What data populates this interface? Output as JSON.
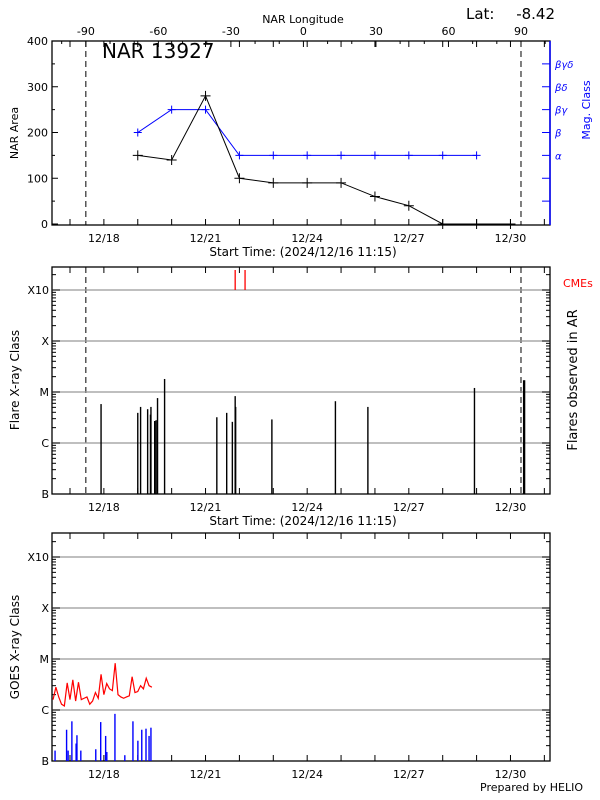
{
  "header": {
    "lat_label": "Lat:",
    "lat_value": "-8.42",
    "lon_axis_label": "NAR Longitude",
    "region_title": "NAR 13927"
  },
  "footer": {
    "prepared_by": "Prepared by HELIO"
  },
  "colors": {
    "area": "#000000",
    "mag": "#0000ff",
    "cme": "#ff0000",
    "goes_long": "#ff0000",
    "goes_short": "#0000ff",
    "grid": "#999999"
  },
  "chart_data": [
    {
      "type": "line",
      "panel": "nar",
      "xlabel": "Start Time: (2024/12/16 11:15)",
      "ylabel": "NAR Area",
      "y2label": "Mag. Class",
      "xlim": [
        "2024-12-16T11:15",
        "2024-12-31T04:00"
      ],
      "ylim": [
        0,
        400
      ],
      "yticks": [
        0,
        100,
        200,
        300,
        400
      ],
      "xticks": [
        "12/18",
        "12/21",
        "12/24",
        "12/27",
        "12/30"
      ],
      "top_axis": {
        "label": "NAR Longitude",
        "range": [
          -104,
          102
        ],
        "ticks": [
          -90,
          -60,
          -30,
          0,
          30,
          60,
          90
        ]
      },
      "limb_markers_longitude": [
        -90,
        90
      ],
      "mag_class_ticks": [
        {
          "area": 50,
          "label": ""
        },
        {
          "area": 100,
          "label": ""
        },
        {
          "area": 150,
          "label": "α"
        },
        {
          "area": 200,
          "label": "β"
        },
        {
          "area": 250,
          "label": "βγ"
        },
        {
          "area": 300,
          "label": "βδ"
        },
        {
          "area": 350,
          "label": "βγδ"
        }
      ],
      "area_series": {
        "x": [
          "2024-12-19T00:00",
          "2024-12-20T00:00",
          "2024-12-21T00:00",
          "2024-12-22T00:00",
          "2024-12-23T00:00",
          "2024-12-24T00:00",
          "2024-12-25T00:00",
          "2024-12-26T00:00",
          "2024-12-27T00:00",
          "2024-12-28T00:00",
          "2024-12-29T00:00",
          "2024-12-30T00:00"
        ],
        "values": [
          150,
          140,
          280,
          100,
          90,
          90,
          90,
          60,
          40,
          0,
          0,
          0
        ]
      },
      "mag_series": {
        "x": [
          "2024-12-19T00:00",
          "2024-12-20T00:00",
          "2024-12-21T00:00",
          "2024-12-22T00:00",
          "2024-12-23T00:00",
          "2024-12-24T00:00",
          "2024-12-25T00:00",
          "2024-12-26T00:00",
          "2024-12-27T00:00",
          "2024-12-28T00:00",
          "2024-12-29T00:00"
        ],
        "classes": [
          "β",
          "βγ",
          "βγ",
          "α",
          "α",
          "α",
          "α",
          "α",
          "α",
          "α",
          "α"
        ]
      }
    },
    {
      "type": "bar",
      "panel": "flares",
      "xlabel": "Start Time: (2024/12/16 11:15)",
      "ylabel": "Flare X-ray Class",
      "y2label": "Flares observed in AR",
      "xlim": [
        "2024-12-16T11:15",
        "2024-12-31T04:00"
      ],
      "yscale": "log",
      "yticks": [
        "B",
        "C",
        "M",
        "X",
        "X10"
      ],
      "xticks": [
        "12/18",
        "12/21",
        "12/24",
        "12/27",
        "12/30"
      ],
      "grid": true,
      "flares": [
        {
          "t": "2024-12-17T22:00",
          "class": "C5.8"
        },
        {
          "t": "2024-12-19T00:00",
          "class": "C3.9"
        },
        {
          "t": "2024-12-19T02:00",
          "class": "C5.1"
        },
        {
          "t": "2024-12-19T07:00",
          "class": "C4.6"
        },
        {
          "t": "2024-12-19T09:00",
          "class": "C3.6"
        },
        {
          "t": "2024-12-19T09:20",
          "class": "C5.1"
        },
        {
          "t": "2024-12-19T12:00",
          "class": "C2.7"
        },
        {
          "t": "2024-12-19T13:00",
          "class": "C2.8"
        },
        {
          "t": "2024-12-19T14:00",
          "class": "C7.6"
        },
        {
          "t": "2024-12-19T19:00",
          "class": "M1.8"
        },
        {
          "t": "2024-12-21T08:00",
          "class": "C3.2"
        },
        {
          "t": "2024-12-21T15:00",
          "class": "C3.9"
        },
        {
          "t": "2024-12-21T19:00",
          "class": "C2.6"
        },
        {
          "t": "2024-12-21T21:00",
          "class": "C8.3"
        },
        {
          "t": "2024-12-21T21:20",
          "class": "C5.1"
        },
        {
          "t": "2024-12-22T23:00",
          "class": "C2.9"
        },
        {
          "t": "2024-12-24T20:00",
          "class": "C6.6"
        },
        {
          "t": "2024-12-25T19:00",
          "class": "C5.1"
        },
        {
          "t": "2024-12-28T22:30",
          "class": "M1.2"
        },
        {
          "t": "2024-12-30T09:20",
          "class": "M1.7"
        },
        {
          "t": "2024-12-30T10:00",
          "class": "M1.7"
        }
      ],
      "cme_label": "CMEs",
      "cmes": [
        "2024-12-21T21:00",
        "2024-12-22T04:00"
      ]
    },
    {
      "type": "line",
      "panel": "goes",
      "ylabel": "GOES X-ray Class",
      "xlim": [
        "2024-12-16T11:15",
        "2024-12-31T04:00"
      ],
      "yscale": "log",
      "yticks": [
        "B",
        "C",
        "M",
        "X",
        "X10"
      ],
      "xticks": [
        "12/18",
        "12/21",
        "12/24",
        "12/27",
        "12/30"
      ],
      "grid": true,
      "long_channel": {
        "start": "2024-12-16T12:00",
        "step_hours": 2,
        "classes": [
          "C1.6",
          "C2.8",
          "C1.8",
          "C1.3",
          "C1.2",
          "C3.4",
          "C1.6",
          "C3.9",
          "C1.5",
          "C3.5",
          "C1.6",
          "C1.7",
          "C1.8",
          "C1.3",
          "C1.5",
          "C2.2",
          "C1.7",
          "C5.0",
          "C2.0",
          "C3.3",
          "C2.6",
          "C2.4",
          "C8.3",
          "C2.0",
          "C1.8",
          "C1.7",
          "C1.8",
          "C1.9",
          "C4.5",
          "C2.2",
          "C2.3",
          "C3.0",
          "C2.6",
          "C4.2",
          "C3.0",
          "C2.8"
        ]
      },
      "short_channel": [
        {
          "t": "2024-12-16T13:25",
          "class": "B1.6"
        },
        {
          "t": "2024-12-16T21:35",
          "class": "B4.1"
        },
        {
          "t": "2024-12-16T22:40",
          "class": "B1.6"
        },
        {
          "t": "2024-12-17T01:20",
          "class": "B6.0"
        },
        {
          "t": "2024-12-17T04:20",
          "class": "B2.2"
        },
        {
          "t": "2024-12-17T04:55",
          "class": "B3.2"
        },
        {
          "t": "2024-12-17T07:40",
          "class": "B1.6"
        },
        {
          "t": "2024-12-17T18:15",
          "class": "B1.7"
        },
        {
          "t": "2024-12-17T21:45",
          "class": "B5.8"
        },
        {
          "t": "2024-12-18T01:15",
          "class": "B3.1"
        },
        {
          "t": "2024-12-18T02:05",
          "class": "B1.5"
        },
        {
          "t": "2024-12-18T07:50",
          "class": "B8.4"
        },
        {
          "t": "2024-12-18T14:50",
          "class": "B1.3"
        },
        {
          "t": "2024-12-18T20:35",
          "class": "B6.0"
        },
        {
          "t": "2024-12-19T00:05",
          "class": "B2.5"
        },
        {
          "t": "2024-12-19T02:50",
          "class": "B4.1"
        },
        {
          "t": "2024-12-19T05:50",
          "class": "B4.3"
        },
        {
          "t": "2024-12-19T08:00",
          "class": "B3.1"
        },
        {
          "t": "2024-12-19T09:20",
          "class": "B4.5"
        }
      ]
    }
  ]
}
